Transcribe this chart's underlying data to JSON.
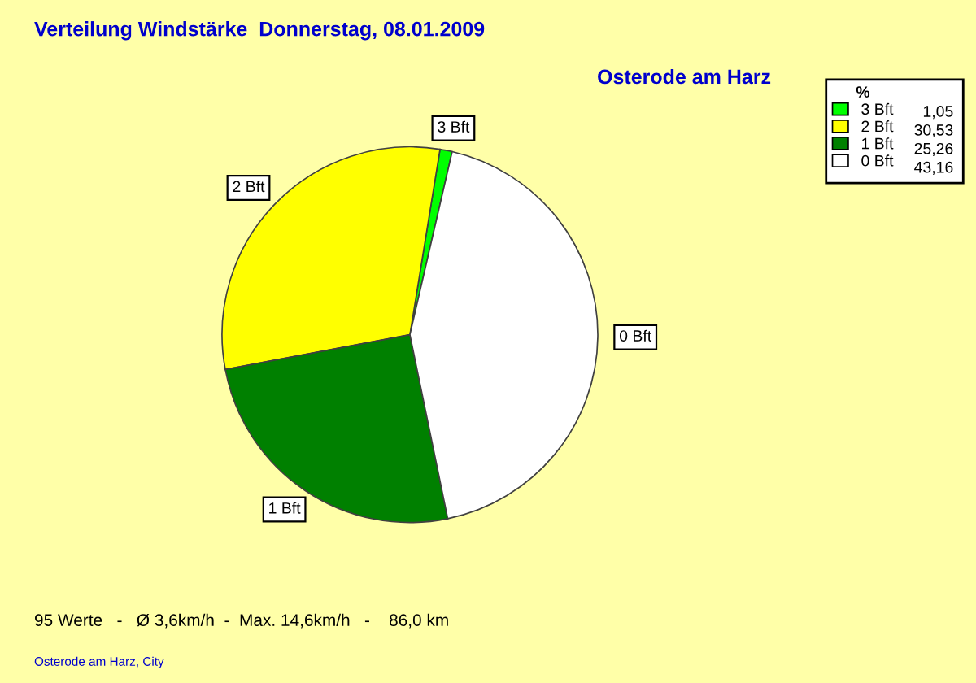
{
  "chart_data": {
    "type": "pie",
    "title": "Verteilung Windstärke  Donnerstag, 08.01.2009",
    "subtitle": "Osterode am Harz",
    "categories": [
      "3 Bft",
      "2 Bft",
      "1 Bft",
      "0 Bft"
    ],
    "values": [
      1.05,
      30.53,
      25.26,
      43.16
    ],
    "value_labels": [
      "1,05",
      "30,53",
      "25,26",
      "43,16"
    ],
    "colors": [
      "#00ff00",
      "#ffff00",
      "#008000",
      "#ffffff"
    ],
    "legend": "top right",
    "legend_title": "%",
    "annotations": [
      "95 Werte   -   Ø 3,6km/h  -  Max. 14,6km/h   -    86,0 km",
      "Osterode am Harz, City"
    ]
  }
}
